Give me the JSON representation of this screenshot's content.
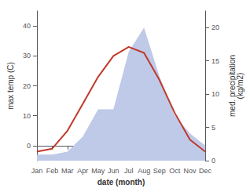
{
  "chart_data": {
    "type": "line",
    "xlabel": "date (month)",
    "ylabel": "max temp (C)",
    "y2label": "med. precipitation\n(kg/m2)",
    "categories": [
      "Jan",
      "Feb",
      "Mar",
      "Apr",
      "May",
      "Jun",
      "Jul",
      "Aug",
      "Sep",
      "Oct",
      "Nov",
      "Dec"
    ],
    "series": [
      {
        "type": "area",
        "axis": "y2",
        "color": "#bfc9e8",
        "values": [
          0.9090909090909091,
          0.9090909090909091,
          1.3636363636363635,
          3.6363636363636362,
          7.727272727272727,
          7.727272727272727,
          16.363636363636363,
          20.0,
          12.727272727272727,
          6.8181818181818175,
          4.090909090909091,
          2.2727272727272725
        ]
      },
      {
        "type": "line",
        "color": "#c0392b",
        "values": [
          -2,
          -1,
          5,
          14,
          23,
          30,
          33,
          31,
          22,
          11,
          2,
          -2
        ]
      }
    ],
    "ylim": [
      -5,
      45
    ],
    "yticks": [
      0,
      10,
      20,
      30,
      40
    ],
    "y2lim": [
      0,
      22.5
    ],
    "y2ticks": [
      0,
      5,
      10,
      15,
      20
    ],
    "grid": false
  }
}
